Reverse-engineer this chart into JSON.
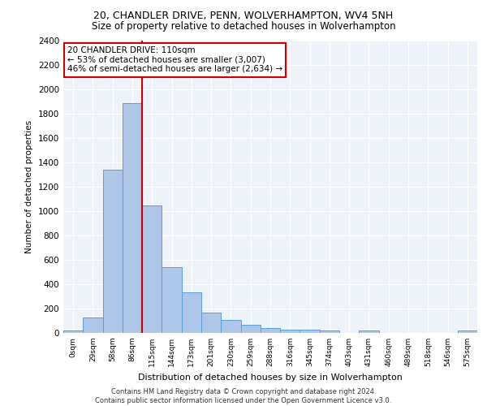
{
  "title": "20, CHANDLER DRIVE, PENN, WOLVERHAMPTON, WV4 5NH",
  "subtitle": "Size of property relative to detached houses in Wolverhampton",
  "xlabel": "Distribution of detached houses by size in Wolverhampton",
  "ylabel": "Number of detached properties",
  "bar_labels": [
    "0sqm",
    "29sqm",
    "58sqm",
    "86sqm",
    "115sqm",
    "144sqm",
    "173sqm",
    "201sqm",
    "230sqm",
    "259sqm",
    "288sqm",
    "316sqm",
    "345sqm",
    "374sqm",
    "403sqm",
    "431sqm",
    "460sqm",
    "489sqm",
    "518sqm",
    "546sqm",
    "575sqm"
  ],
  "bar_values": [
    20,
    125,
    1340,
    1890,
    1045,
    540,
    335,
    165,
    110,
    65,
    40,
    30,
    25,
    20,
    0,
    20,
    0,
    0,
    0,
    0,
    20
  ],
  "bar_color": "#aec6e8",
  "bar_edge_color": "#5a9fd4",
  "annotation_title": "20 CHANDLER DRIVE: 110sqm",
  "annotation_line1": "← 53% of detached houses are smaller (3,007)",
  "annotation_line2": "46% of semi-detached houses are larger (2,634) →",
  "annotation_box_color": "#ffffff",
  "annotation_box_edge_color": "#cc0000",
  "vline_color": "#cc0000",
  "vline_x": 3.5,
  "ylim": [
    0,
    2400
  ],
  "yticks": [
    0,
    200,
    400,
    600,
    800,
    1000,
    1200,
    1400,
    1600,
    1800,
    2000,
    2200,
    2400
  ],
  "footer_line1": "Contains HM Land Registry data © Crown copyright and database right 2024.",
  "footer_line2": "Contains public sector information licensed under the Open Government Licence v3.0.",
  "bg_color": "#eef2f9",
  "title_fontsize": 9,
  "subtitle_fontsize": 8.5
}
